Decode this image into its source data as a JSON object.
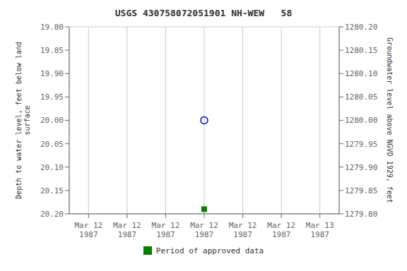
{
  "chart_data": {
    "type": "scatter",
    "title": "USGS 430758072051901 NH-WEW   58",
    "y_label": "Depth to water level, feet below land\nsurface",
    "y2_label": "Groundwater level above NGVD 1929, feet",
    "categories": [
      "Mar 12\n1987",
      "Mar 12\n1987",
      "Mar 12\n1987",
      "Mar 12\n1987",
      "Mar 12\n1987",
      "Mar 12\n1987",
      "Mar 13\n1987"
    ],
    "series": [
      {
        "color": "#0000cc",
        "marker": "open_circle",
        "values": [
          null,
          null,
          null,
          20.0,
          null,
          null,
          null
        ]
      },
      {
        "name": "Period of approved data",
        "color": "#008000",
        "marker": "square",
        "values": [
          null,
          null,
          null,
          20.19,
          null,
          null,
          null
        ]
      }
    ],
    "ylim": [
      20.2,
      19.8
    ],
    "yticks": [
      {
        "value": 19.8,
        "label": "19.80"
      },
      {
        "value": 19.85,
        "label": "19.85"
      },
      {
        "value": 19.9,
        "label": "19.90"
      },
      {
        "value": 19.95,
        "label": "19.95"
      },
      {
        "value": 20.0,
        "label": "20.00"
      },
      {
        "value": 20.05,
        "label": "20.05"
      },
      {
        "value": 20.1,
        "label": "20.10"
      },
      {
        "value": 20.15,
        "label": "20.15"
      },
      {
        "value": 20.2,
        "label": "20.20"
      }
    ],
    "y2lim": [
      1279.8,
      1280.2
    ],
    "y2ticks": [
      {
        "value": 1279.8,
        "label": "1279.80"
      },
      {
        "value": 1279.85,
        "label": "1279.85"
      },
      {
        "value": 1279.9,
        "label": "1279.90"
      },
      {
        "value": 1279.95,
        "label": "1279.95"
      },
      {
        "value": 1280.0,
        "label": "1280.00"
      },
      {
        "value": 1280.05,
        "label": "1280.05"
      },
      {
        "value": 1280.1,
        "label": "1280.10"
      },
      {
        "value": 1280.15,
        "label": "1280.15"
      },
      {
        "value": 1280.2,
        "label": "1280.20"
      }
    ],
    "grid": true,
    "legend": "bottom"
  }
}
